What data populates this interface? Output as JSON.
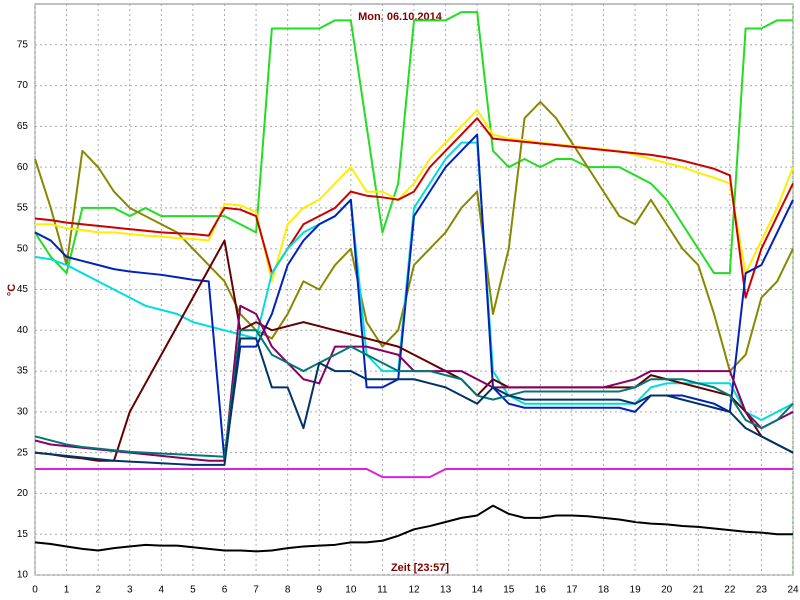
{
  "chart_data": {
    "type": "line",
    "title": "Mon, 06.10.2014",
    "x_label": "Zeit [23:57]",
    "y_label": "°C",
    "xlim": [
      0,
      24
    ],
    "xticks": [
      0,
      1,
      2,
      3,
      4,
      5,
      6,
      7,
      8,
      9,
      10,
      11,
      12,
      13,
      14,
      15,
      16,
      17,
      18,
      19,
      20,
      21,
      22,
      23,
      24
    ],
    "ylim": [
      10,
      80
    ],
    "yticks": [
      10,
      15,
      20,
      25,
      30,
      35,
      40,
      45,
      50,
      55,
      60,
      65,
      70,
      75
    ],
    "grid": true,
    "x": [
      0,
      0.5,
      1,
      1.5,
      2,
      2.5,
      3,
      3.5,
      4,
      4.5,
      5,
      5.5,
      6,
      6.5,
      7,
      7.5,
      8,
      8.5,
      9,
      9.5,
      10,
      10.5,
      11,
      11.5,
      12,
      12.5,
      13,
      13.5,
      14,
      14.5,
      15,
      15.5,
      16,
      16.5,
      17,
      17.5,
      18,
      18.5,
      19,
      19.5,
      20,
      20.5,
      21,
      21.5,
      22,
      22.5,
      23,
      23.5,
      24
    ],
    "series": [
      {
        "color": "#22dd22",
        "values": [
          52,
          49,
          47,
          55,
          55,
          55,
          54,
          55,
          54,
          54,
          54,
          54,
          54,
          53,
          52,
          77,
          77,
          77,
          77,
          78,
          78,
          65,
          52,
          58,
          78,
          78,
          78,
          79,
          79,
          62,
          60,
          61,
          60,
          61,
          61,
          60,
          60,
          60,
          59,
          58,
          56,
          53,
          50,
          47,
          47,
          77,
          77,
          78,
          78
        ]
      },
      {
        "color": "#888800",
        "values": [
          61,
          55,
          48,
          62,
          60,
          57,
          55,
          54,
          53,
          52,
          50,
          48,
          46,
          42,
          40,
          39,
          42,
          46,
          45,
          48,
          50,
          41,
          38,
          40,
          48,
          50,
          52,
          55,
          57,
          42,
          50,
          66,
          68,
          66,
          63,
          60,
          57,
          54,
          53,
          56,
          53,
          50,
          48,
          42,
          35,
          37,
          44,
          46,
          50
        ]
      },
      {
        "color": "#ffee00",
        "values": [
          53,
          53,
          52.5,
          52.3,
          52,
          52,
          51.8,
          51.6,
          51.5,
          51.3,
          51.2,
          51,
          55.5,
          55.3,
          54.5,
          46,
          53,
          55,
          56,
          58,
          60,
          57,
          57,
          56,
          58,
          61,
          63,
          65,
          67,
          64,
          63.5,
          63.3,
          63,
          62.8,
          62.6,
          62.4,
          62.2,
          62,
          61.5,
          61,
          60.5,
          60,
          59.3,
          58.7,
          58,
          47,
          51,
          55,
          60
        ]
      },
      {
        "color": "#cc0000",
        "values": [
          53.7,
          53.5,
          53.2,
          53,
          52.8,
          52.6,
          52.4,
          52.2,
          52,
          51.9,
          51.8,
          51.6,
          55,
          54.8,
          54,
          47,
          50,
          53,
          54,
          55,
          57,
          56.5,
          56.3,
          56,
          57,
          60,
          62,
          64,
          66,
          63.5,
          63.3,
          63.1,
          62.9,
          62.7,
          62.5,
          62.3,
          62.1,
          61.9,
          61.7,
          61.5,
          61.2,
          60.8,
          60.3,
          59.8,
          59,
          44,
          50,
          54,
          58
        ]
      },
      {
        "color": "#00dddd",
        "values": [
          49,
          48.7,
          48,
          47,
          46,
          45,
          44,
          43,
          42.5,
          42,
          41,
          40.5,
          40,
          39.5,
          39,
          47,
          50,
          52,
          53,
          54,
          56,
          37,
          35,
          35,
          55,
          58,
          61,
          63,
          63,
          35,
          32,
          31,
          31,
          31,
          31,
          31,
          31,
          31,
          31,
          33,
          33.5,
          33.5,
          33.5,
          33.5,
          33.5,
          30,
          29,
          30,
          31
        ]
      },
      {
        "color": "#0022bb",
        "values": [
          52,
          51,
          49,
          48.5,
          48,
          47.5,
          47.2,
          47,
          46.8,
          46.5,
          46.2,
          46,
          24,
          38,
          38,
          42,
          48,
          51,
          53,
          54,
          56,
          33,
          33,
          34,
          54,
          57,
          60,
          62,
          64,
          33,
          31,
          30.5,
          30.5,
          30.5,
          30.5,
          30.5,
          30.5,
          30.5,
          30,
          32,
          32,
          32,
          31.5,
          31,
          30,
          47,
          48,
          52,
          56
        ]
      },
      {
        "color": "#660000",
        "values": [
          25,
          24.8,
          24.5,
          24.3,
          24,
          24,
          30,
          33.5,
          37,
          40.5,
          44,
          47.5,
          51,
          40,
          41,
          40,
          40.5,
          41,
          40.5,
          40,
          39.5,
          39,
          38.5,
          38,
          37,
          36,
          35,
          34,
          32,
          34,
          33,
          33,
          33,
          33,
          33,
          33,
          33,
          33,
          33,
          34.5,
          34,
          33.5,
          33,
          32.5,
          32,
          30,
          27,
          26,
          25
        ]
      },
      {
        "color": "#880066",
        "values": [
          26.5,
          26,
          25.8,
          25.6,
          25.4,
          25.2,
          25,
          24.8,
          24.6,
          24.4,
          24.2,
          24,
          24,
          43,
          42,
          38,
          36,
          34,
          33.5,
          38,
          38,
          38,
          37.5,
          37,
          35,
          35,
          35,
          35,
          34,
          33,
          33,
          33,
          33,
          33,
          33,
          33,
          33,
          33.5,
          34,
          35,
          35,
          35,
          35,
          35,
          35,
          30,
          28,
          29,
          30
        ]
      },
      {
        "color": "#007777",
        "values": [
          27,
          26.5,
          26,
          25.7,
          25.5,
          25.3,
          25.1,
          25,
          24.9,
          24.8,
          24.7,
          24.6,
          24.5,
          40,
          40,
          37,
          36,
          35,
          36,
          37,
          38,
          37,
          36,
          35,
          35,
          35,
          34.5,
          34,
          32,
          31.5,
          32,
          32.5,
          32.5,
          32.5,
          32.5,
          32.5,
          32.5,
          32.5,
          33,
          34,
          34,
          34,
          33.5,
          33,
          32,
          29,
          28,
          29,
          31
        ]
      },
      {
        "color": "#003366",
        "values": [
          25,
          24.8,
          24.6,
          24.4,
          24.2,
          24,
          23.9,
          23.8,
          23.7,
          23.6,
          23.5,
          23.5,
          23.5,
          39,
          39,
          33,
          33,
          28,
          36,
          35,
          35,
          34,
          34,
          34,
          34,
          33.5,
          33,
          32,
          31,
          33,
          32,
          31.5,
          31.5,
          31.5,
          31.5,
          31.5,
          31.5,
          31.5,
          31,
          32,
          32,
          31.5,
          31,
          30.5,
          30,
          28,
          27,
          26,
          25
        ]
      },
      {
        "color": "#dd22dd",
        "values": [
          23,
          23,
          23,
          23,
          23,
          23,
          23,
          23,
          23,
          23,
          23,
          23,
          23,
          23,
          23,
          23,
          23,
          23,
          23,
          23,
          23,
          23,
          22,
          22,
          22,
          22,
          23,
          23,
          23,
          23,
          23,
          23,
          23,
          23,
          23,
          23,
          23,
          23,
          23,
          23,
          23,
          23,
          23,
          23,
          23,
          23,
          23,
          23,
          23
        ]
      },
      {
        "color": "#000000",
        "values": [
          14,
          13.8,
          13.5,
          13.2,
          13,
          13.3,
          13.5,
          13.7,
          13.6,
          13.6,
          13.4,
          13.2,
          13,
          13,
          12.9,
          13,
          13.3,
          13.5,
          13.6,
          13.7,
          14,
          14,
          14.2,
          14.8,
          15.6,
          16,
          16.5,
          17,
          17.3,
          18.5,
          17.5,
          17,
          17,
          17.3,
          17.3,
          17.2,
          17,
          16.8,
          16.5,
          16.3,
          16.2,
          16,
          15.9,
          15.7,
          15.5,
          15.3,
          15.2,
          15,
          15
        ]
      }
    ]
  }
}
